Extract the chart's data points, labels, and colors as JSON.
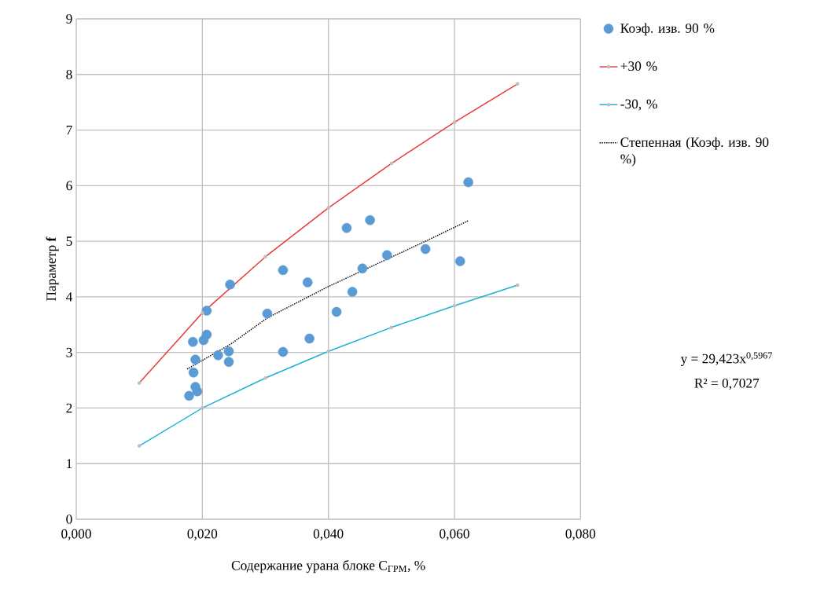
{
  "chart_data": {
    "type": "scatter",
    "xlabel": "Содержание урана блоке C$_{ГРМ}$, %",
    "ylabel": "Параметр **f**",
    "xlim": [
      0,
      0.08
    ],
    "ylim": [
      0,
      9
    ],
    "xticks": [
      {
        "value": 0,
        "label": "0,000"
      },
      {
        "value": 0.02,
        "label": "0,020"
      },
      {
        "value": 0.04,
        "label": "0,040"
      },
      {
        "value": 0.06,
        "label": "0,060"
      },
      {
        "value": 0.08,
        "label": "0,080"
      }
    ],
    "yticks": [
      0,
      1,
      2,
      3,
      4,
      5,
      6,
      7,
      8,
      9
    ],
    "grid": true,
    "legend": "right",
    "annotations": [
      "y = 29,423x$^{0,5967}$",
      "R² = 0,7027"
    ],
    "series": [
      {
        "name": "Коэф. изв. 90 %",
        "marker": "circle",
        "color": "#5b9bd5",
        "x": [
          0.0179,
          0.0192,
          0.0189,
          0.0186,
          0.0189,
          0.0185,
          0.0202,
          0.0207,
          0.0207,
          0.0225,
          0.0242,
          0.0242,
          0.0244,
          0.0303,
          0.0328,
          0.0328,
          0.0367,
          0.037,
          0.0413,
          0.0438,
          0.0454,
          0.0429,
          0.0466,
          0.0554,
          0.0609,
          0.0622,
          0.0493
        ],
        "values": [
          2.22,
          2.3,
          2.38,
          2.64,
          2.87,
          3.19,
          3.22,
          3.32,
          3.75,
          2.95,
          3.02,
          2.83,
          4.22,
          3.7,
          3.01,
          4.48,
          4.26,
          3.25,
          3.73,
          4.09,
          4.51,
          5.24,
          5.38,
          4.86,
          4.64,
          6.06,
          4.75
        ]
      },
      {
        "name": "+30 %",
        "type": "line",
        "marker": "circle",
        "line_style": "solid",
        "color": "#e8393a",
        "x": [
          0.01,
          0.02,
          0.03,
          0.04,
          0.05,
          0.06,
          0.07
        ],
        "values": [
          2.45,
          3.71,
          4.72,
          5.6,
          6.4,
          7.14,
          7.83
        ]
      },
      {
        "name": "-30, %",
        "type": "line",
        "marker": "circle",
        "line_style": "solid",
        "color": "#1cb0d6",
        "x": [
          0.01,
          0.02,
          0.03,
          0.04,
          0.05,
          0.06,
          0.07
        ],
        "values": [
          1.32,
          2.0,
          2.54,
          3.02,
          3.45,
          3.84,
          4.21
        ]
      },
      {
        "name": "Степенная (Коэф. изв. 90 %)",
        "type": "line",
        "marker": "none",
        "line_style": "dotted",
        "color": "#000000",
        "x": [
          0.0176,
          0.0245,
          0.0303,
          0.0399,
          0.0554,
          0.0622
        ],
        "values": [
          2.7,
          3.15,
          3.62,
          4.18,
          5.0,
          5.37
        ]
      }
    ]
  }
}
